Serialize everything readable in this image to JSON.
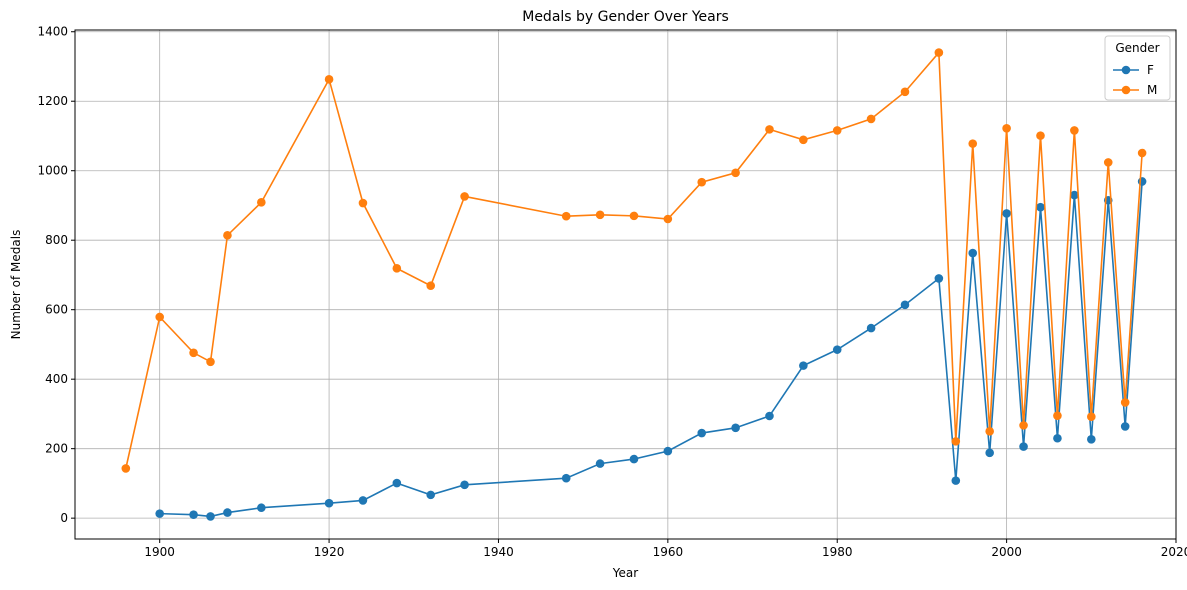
{
  "chart_data": {
    "type": "line",
    "title": "Medals by Gender Over Years",
    "xlabel": "Year",
    "ylabel": "Number of Medals",
    "xlim": [
      1890,
      2020
    ],
    "ylim": [
      -60,
      1405
    ],
    "xticks": [
      1900,
      1920,
      1940,
      1960,
      1980,
      2000,
      2020
    ],
    "yticks": [
      0,
      200,
      400,
      600,
      800,
      1000,
      1200,
      1400
    ],
    "grid": true,
    "legend": {
      "title": "Gender",
      "placement": "top-right"
    },
    "markers": "circle",
    "series": [
      {
        "name": "F",
        "color": "#1f77b4",
        "x": [
          1900,
          1904,
          1906,
          1908,
          1912,
          1920,
          1924,
          1928,
          1932,
          1936,
          1948,
          1952,
          1956,
          1960,
          1964,
          1968,
          1972,
          1976,
          1980,
          1984,
          1988,
          1992,
          1994,
          1996,
          1998,
          2000,
          2002,
          2004,
          2006,
          2008,
          2010,
          2012,
          2014,
          2016
        ],
        "y": [
          13,
          10,
          5,
          16,
          30,
          43,
          51,
          101,
          67,
          96,
          115,
          157,
          170,
          193,
          245,
          260,
          294,
          439,
          485,
          547,
          614,
          690,
          108,
          763,
          188,
          877,
          206,
          895,
          230,
          930,
          227,
          915,
          264,
          969
        ]
      },
      {
        "name": "M",
        "color": "#ff7f0e",
        "x": [
          1896,
          1900,
          1904,
          1906,
          1908,
          1912,
          1920,
          1924,
          1928,
          1932,
          1936,
          1948,
          1952,
          1956,
          1960,
          1964,
          1968,
          1972,
          1976,
          1980,
          1984,
          1988,
          1992,
          1994,
          1996,
          1998,
          2000,
          2002,
          2004,
          2006,
          2008,
          2010,
          2012,
          2014,
          2016
        ],
        "y": [
          143,
          579,
          476,
          450,
          814,
          909,
          1263,
          907,
          719,
          669,
          926,
          869,
          873,
          870,
          861,
          967,
          994,
          1119,
          1089,
          1116,
          1149,
          1227,
          1340,
          221,
          1078,
          250,
          1122,
          267,
          1101,
          295,
          1116,
          292,
          1024,
          333,
          1051
        ]
      }
    ]
  }
}
